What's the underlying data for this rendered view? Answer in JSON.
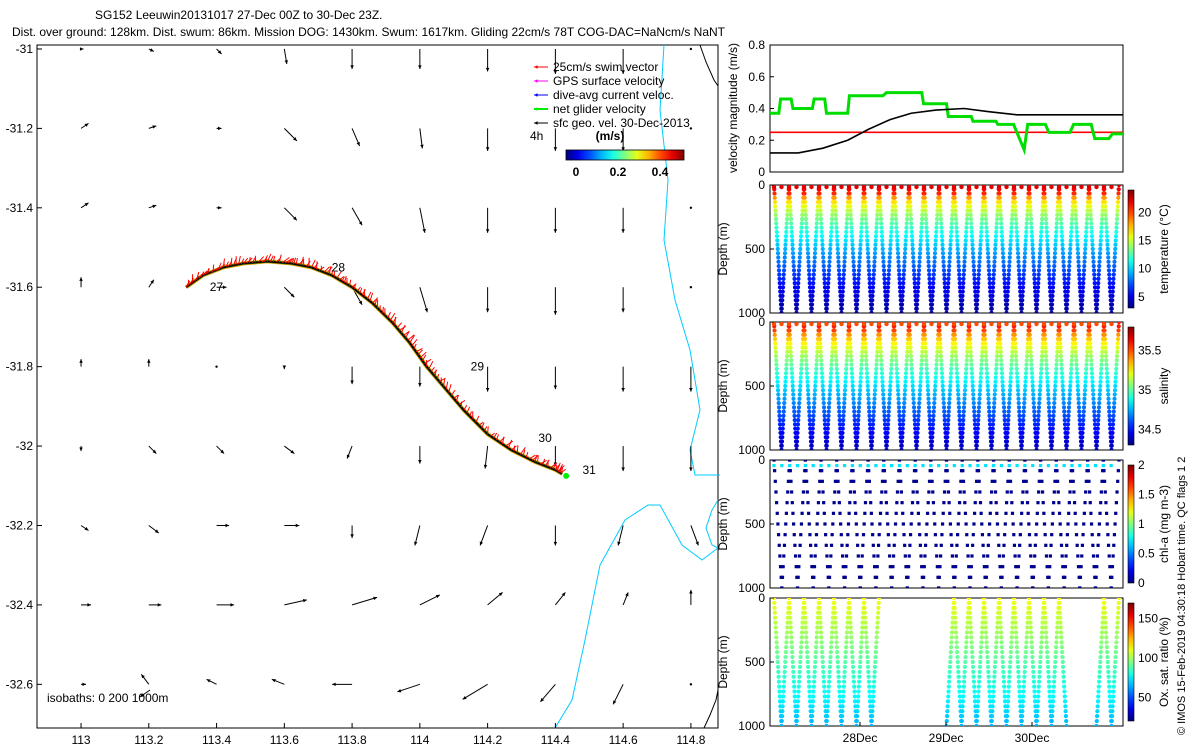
{
  "header": {
    "line1": "SG152 Leeuwin20131017 27-Dec 00Z to 30-Dec 23Z.",
    "line2": "Dist. over ground: 128km. Dist. swum: 86km. Mission DOG: 1430km. Swum: 1617km. Gliding 22cm/s 78T COG-DAC=NaNcm/s NaNT"
  },
  "credit": "© IMOS 15-Feb-2019 04:30:18 Hobart time. QC flags 1  2",
  "colors": {
    "swim": "#ff0000",
    "gps": "#ff00ff",
    "dac": "#0000ff",
    "net": "#00ee00",
    "geo": "#000000",
    "coast": "#00ccff",
    "track_edge": "#ffa500"
  },
  "chart_data": [
    {
      "type": "scatter",
      "name": "map",
      "x_ticks": [
        "113",
        "113.2",
        "113.4",
        "113.6",
        "113.8",
        "114",
        "114.2",
        "114.4",
        "114.6",
        "114.8"
      ],
      "y_ticks": [
        "-31",
        "-31.2",
        "-31.4",
        "-31.6",
        "-31.8",
        "-32",
        "-32.2",
        "-32.4",
        "-32.6"
      ],
      "xlim": [
        112.87,
        114.88
      ],
      "ylim": [
        -32.71,
        -30.99
      ],
      "legend": {
        "items": [
          "25cm/s swim vector",
          "GPS surface velocity",
          "dive-avg current veloc.",
          "net glider velocity",
          "sfc geo. vel. 30-Dec-2013"
        ],
        "scale_label": "4h",
        "colorbar_title": "(m/s)",
        "colorbar_ticks": [
          "0",
          "0.2",
          "0.4"
        ]
      },
      "isobaths_label": "isobaths: 0   200   1000m",
      "day_labels": [
        {
          "text": "27",
          "lon": 113.38,
          "lat": -31.6
        },
        {
          "text": "28",
          "lon": 113.74,
          "lat": -31.55
        },
        {
          "text": "29",
          "lon": 114.15,
          "lat": -31.8
        },
        {
          "text": "30",
          "lon": 114.35,
          "lat": -31.98
        },
        {
          "text": "31",
          "lon": 114.48,
          "lat": -32.06
        }
      ],
      "track": [
        [
          113.31,
          -31.6
        ],
        [
          113.36,
          -31.57
        ],
        [
          113.42,
          -31.55
        ],
        [
          113.48,
          -31.54
        ],
        [
          113.55,
          -31.535
        ],
        [
          113.62,
          -31.54
        ],
        [
          113.68,
          -31.55
        ],
        [
          113.74,
          -31.57
        ],
        [
          113.8,
          -31.6
        ],
        [
          113.86,
          -31.64
        ],
        [
          113.92,
          -31.69
        ],
        [
          113.97,
          -31.74
        ],
        [
          114.02,
          -31.8
        ],
        [
          114.07,
          -31.85
        ],
        [
          114.13,
          -31.91
        ],
        [
          114.2,
          -31.97
        ],
        [
          114.27,
          -32.01
        ],
        [
          114.34,
          -32.04
        ],
        [
          114.4,
          -32.06
        ],
        [
          114.42,
          -32.07
        ]
      ],
      "geo_vectors": {
        "lons": [
          113.0,
          113.2,
          113.4,
          113.6,
          113.8,
          114.0,
          114.2,
          114.4,
          114.6,
          114.8
        ],
        "lats": [
          -31.0,
          -31.2,
          -31.4,
          -31.6,
          -31.8,
          -32.0,
          -32.2,
          -32.4,
          -32.6
        ],
        "u": [
          [
            0.01,
            0.02,
            0.02,
            0.01,
            0.0,
            0.0,
            0.0,
            0.0,
            0.0,
            0.0
          ],
          [
            0.03,
            0.03,
            0.02,
            0.05,
            0.03,
            0.01,
            0.0,
            0.0,
            0.0,
            0.0
          ],
          [
            0.03,
            0.03,
            0.02,
            0.05,
            0.04,
            0.02,
            0.0,
            0.0,
            0.0,
            0.0
          ],
          [
            0.0,
            0.02,
            0.04,
            0.04,
            0.04,
            0.03,
            0.0,
            0.0,
            0.0,
            0.0
          ],
          [
            0.0,
            0.0,
            0.0,
            0.0,
            0.0,
            0.0,
            0.0,
            0.0,
            0.0,
            0.0
          ],
          [
            0.0,
            0.03,
            0.03,
            0.04,
            -0.02,
            0.0,
            -0.01,
            0.0,
            0.0,
            0.0
          ],
          [
            0.03,
            0.04,
            0.05,
            0.06,
            0.0,
            -0.02,
            -0.03,
            0.0,
            -0.02,
            0.03
          ],
          [
            0.04,
            0.05,
            0.07,
            0.09,
            0.1,
            0.08,
            0.06,
            0.04,
            0.02,
            0.0
          ],
          [
            0.02,
            -0.03,
            -0.04,
            -0.05,
            -0.08,
            -0.09,
            -0.1,
            -0.06,
            -0.04,
            0.0
          ]
        ],
        "v": [
          [
            0.0,
            -0.01,
            -0.02,
            -0.06,
            -0.08,
            -0.08,
            -0.09,
            -0.1,
            -0.1,
            0.0
          ],
          [
            0.02,
            0.01,
            0.0,
            -0.05,
            -0.07,
            -0.08,
            -0.09,
            -0.09,
            -0.09,
            0.0
          ],
          [
            0.02,
            0.01,
            0.0,
            -0.05,
            -0.07,
            -0.1,
            -0.1,
            -0.1,
            -0.1,
            0.0
          ],
          [
            0.04,
            0.03,
            0.0,
            -0.04,
            -0.07,
            -0.1,
            -0.1,
            -0.11,
            -0.1,
            0.0
          ],
          [
            0.03,
            0.03,
            0.0,
            -0.01,
            -0.07,
            -0.08,
            -0.1,
            -0.09,
            -0.1,
            -0.1
          ],
          [
            -0.02,
            -0.03,
            -0.03,
            -0.03,
            -0.05,
            -0.07,
            -0.09,
            -0.08,
            -0.1,
            -0.1
          ],
          [
            -0.02,
            -0.03,
            -0.0,
            0.0,
            -0.05,
            -0.08,
            -0.08,
            -0.08,
            -0.08,
            -0.08
          ],
          [
            0.0,
            0.0,
            0.0,
            0.02,
            0.03,
            0.04,
            0.05,
            0.05,
            0.05,
            0.06
          ],
          [
            0.0,
            0.04,
            0.02,
            0.02,
            0.0,
            -0.03,
            -0.06,
            -0.07,
            -0.08,
            0.0
          ]
        ]
      }
    },
    {
      "type": "line",
      "name": "velocity",
      "ylabel": "velocity magnitude (m/s)",
      "y_ticks": [
        "0",
        "0.2",
        "0.4",
        "0.6",
        "0.8"
      ],
      "ylim": [
        0,
        0.8
      ],
      "series": [
        {
          "color": "#ff0000",
          "x": [
            0,
            1
          ],
          "y": [
            0.25,
            0.25
          ]
        },
        {
          "color": "#00dd00",
          "x": [
            0,
            0.025,
            0.03,
            0.06,
            0.065,
            0.12,
            0.125,
            0.155,
            0.16,
            0.22,
            0.225,
            0.32,
            0.33,
            0.43,
            0.435,
            0.5,
            0.505,
            0.57,
            0.575,
            0.64,
            0.645,
            0.69,
            0.72,
            0.73,
            0.78,
            0.79,
            0.85,
            0.86,
            0.91,
            0.92,
            0.96,
            0.97,
            1.0
          ],
          "y": [
            0.37,
            0.37,
            0.46,
            0.46,
            0.4,
            0.4,
            0.46,
            0.46,
            0.37,
            0.37,
            0.48,
            0.48,
            0.5,
            0.5,
            0.43,
            0.43,
            0.35,
            0.35,
            0.32,
            0.32,
            0.3,
            0.3,
            0.14,
            0.3,
            0.3,
            0.25,
            0.25,
            0.3,
            0.3,
            0.21,
            0.21,
            0.24,
            0.24
          ]
        },
        {
          "color": "#000000",
          "x": [
            0,
            0.08,
            0.15,
            0.22,
            0.28,
            0.34,
            0.4,
            0.47,
            0.55,
            0.62,
            0.7,
            0.8,
            0.9,
            1.0
          ],
          "y": [
            0.12,
            0.12,
            0.15,
            0.2,
            0.27,
            0.33,
            0.37,
            0.39,
            0.4,
            0.38,
            0.36,
            0.36,
            0.36,
            0.36
          ]
        }
      ]
    },
    {
      "type": "scatter",
      "name": "temperature",
      "ylabel": "Depth (m)",
      "y_ticks": [
        "0",
        "500",
        "1000"
      ],
      "ylim": [
        0,
        1000
      ],
      "colorbar_label": "temperature (°C)",
      "colorbar_ticks": [
        "5",
        "10",
        "15",
        "20"
      ],
      "clim": [
        3,
        24
      ],
      "dives": 23
    },
    {
      "type": "scatter",
      "name": "salinity",
      "ylabel": "Depth (m)",
      "y_ticks": [
        "0",
        "500",
        "1000"
      ],
      "ylim": [
        0,
        1000
      ],
      "colorbar_label": "salinity",
      "colorbar_ticks": [
        "34.5",
        "35",
        "35.5"
      ],
      "clim": [
        34.3,
        35.8
      ],
      "dives": 23
    },
    {
      "type": "scatter",
      "name": "chl",
      "ylabel": "Depth (m)",
      "y_ticks": [
        "0",
        "500",
        "1000"
      ],
      "ylim": [
        0,
        1000
      ],
      "colorbar_label": "chl-a (mg m-3)",
      "colorbar_ticks": [
        "0",
        "0.5",
        "1",
        "1.5",
        "2"
      ],
      "clim": [
        0,
        2
      ]
    },
    {
      "type": "scatter",
      "name": "oxygen",
      "ylabel": "Depth (m)",
      "y_ticks": [
        "0",
        "500",
        "1000"
      ],
      "ylim": [
        0,
        1000
      ],
      "colorbar_label": "Ox. sat. ratio (%)",
      "colorbar_ticks": [
        "50",
        "100",
        "150"
      ],
      "clim": [
        20,
        170
      ],
      "x_ticks": [
        "28Dec",
        "29Dec",
        "30Dec"
      ]
    }
  ]
}
